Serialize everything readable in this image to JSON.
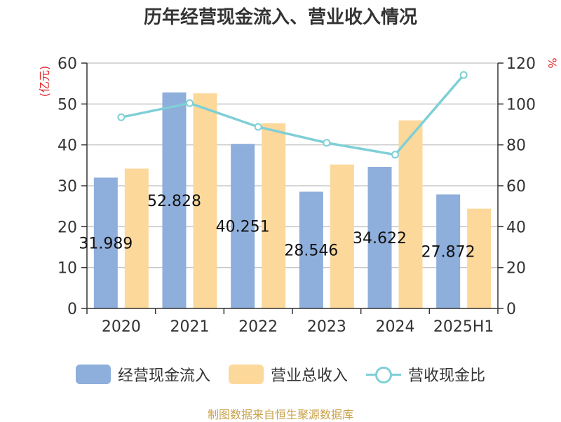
{
  "chart_data": {
    "type": "bar",
    "title": "历年经营现金流入、营业收入情况",
    "categories": [
      "2020",
      "2021",
      "2022",
      "2023",
      "2024",
      "2025H1"
    ],
    "y_left": {
      "label": "(亿元)",
      "ticks": [
        0,
        10,
        20,
        30,
        40,
        50,
        60
      ],
      "ylim": [
        0,
        60
      ]
    },
    "y_right": {
      "label": "%",
      "ticks": [
        0,
        20,
        40,
        60,
        80,
        100,
        120
      ],
      "ylim": [
        0,
        120
      ]
    },
    "series": [
      {
        "name": "经营现金流入",
        "kind": "bar",
        "axis": "left",
        "color": "#8eaedb",
        "values": [
          31.989,
          52.828,
          40.251,
          28.546,
          34.622,
          27.872
        ],
        "labels": [
          "31.989",
          "52.828",
          "40.251",
          "28.546",
          "34.622",
          "27.872"
        ]
      },
      {
        "name": "营业总收入",
        "kind": "bar",
        "axis": "left",
        "color": "#fdd89b",
        "values": [
          34.2,
          52.6,
          45.3,
          35.2,
          46.0,
          24.4
        ]
      },
      {
        "name": "营收现金比",
        "kind": "line",
        "axis": "right",
        "color": "#7fcfd6",
        "values": [
          93.5,
          100.4,
          88.8,
          81.0,
          75.2,
          114.2
        ]
      }
    ],
    "grid": true,
    "legend": "bottom",
    "source": "制图数据来自恒生聚源数据库"
  }
}
